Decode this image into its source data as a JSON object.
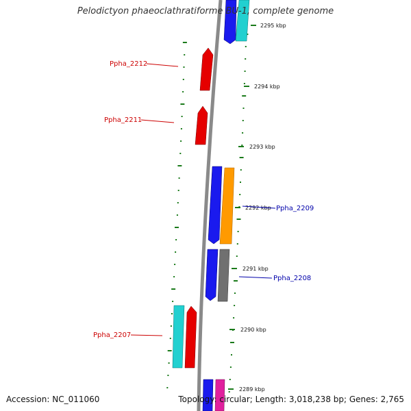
{
  "title": "Pelodictyon phaeoclathratiforme BU-1, complete genome",
  "footer": {
    "accession": "Accession: NC_011060",
    "summary": "Topology: circular; Length: 3,018,238 bp; Genes: 2,765"
  },
  "colors": {
    "backbone": "#8a8a8a",
    "tick": "#1a7a1a",
    "red_label": "#cc0000",
    "blue_label": "#0000aa",
    "gene_red": "#e50000",
    "gene_blue": "#1a1aee",
    "gene_cyan": "#22d0d0",
    "gene_orange": "#ff9a00",
    "gene_gray": "#707070",
    "gene_magenta": "#e0209e"
  },
  "scale_labels": [
    {
      "id": "kbp-2295",
      "text": "2295 kbp"
    },
    {
      "id": "kbp-2294",
      "text": "2294 kbp"
    },
    {
      "id": "kbp-2293",
      "text": "2293 kbp"
    },
    {
      "id": "kbp-2292",
      "text": "2292 kbp"
    },
    {
      "id": "kbp-2291",
      "text": "2291 kbp"
    },
    {
      "id": "kbp-2290",
      "text": "2290 kbp"
    },
    {
      "id": "kbp-2289",
      "text": "2289 kbp"
    }
  ],
  "gene_labels": [
    {
      "id": "ppha-2212",
      "text": "Ppha_2212",
      "side": "left"
    },
    {
      "id": "ppha-2211",
      "text": "Ppha_2211",
      "side": "left"
    },
    {
      "id": "ppha-2209",
      "text": "Ppha_2209",
      "side": "right"
    },
    {
      "id": "ppha-2208",
      "text": "Ppha_2208",
      "side": "right"
    },
    {
      "id": "ppha-2207",
      "text": "Ppha_2207",
      "side": "left"
    }
  ],
  "genes": [
    {
      "id": "gene-top-blue",
      "color": "gene_blue",
      "strand": "forward"
    },
    {
      "id": "gene-top-cyan",
      "color": "gene_cyan",
      "strand": "forward"
    },
    {
      "id": "gene-2212",
      "color": "gene_red",
      "strand": "reverse"
    },
    {
      "id": "gene-2211",
      "color": "gene_red",
      "strand": "reverse"
    },
    {
      "id": "gene-2210-blue",
      "color": "gene_blue",
      "strand": "forward"
    },
    {
      "id": "gene-2209",
      "color": "gene_orange",
      "strand": "forward"
    },
    {
      "id": "gene-2208-blue",
      "color": "gene_blue",
      "strand": "forward"
    },
    {
      "id": "gene-2208-gray",
      "color": "gene_gray",
      "strand": "forward"
    },
    {
      "id": "gene-2207-cyan",
      "color": "gene_cyan",
      "strand": "forward"
    },
    {
      "id": "gene-2207-red",
      "color": "gene_red",
      "strand": "reverse"
    },
    {
      "id": "gene-bottom-blue",
      "color": "gene_blue",
      "strand": "forward"
    },
    {
      "id": "gene-bottom-magenta",
      "color": "gene_magenta",
      "strand": "forward"
    }
  ]
}
